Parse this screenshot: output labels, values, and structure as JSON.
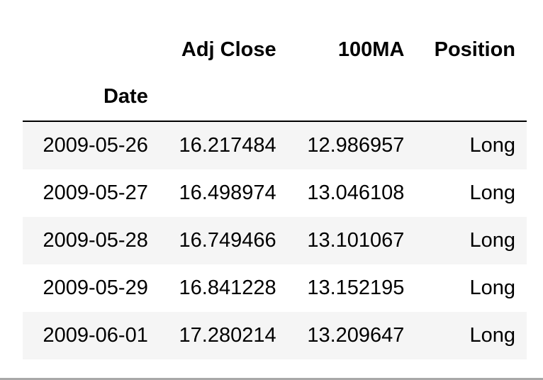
{
  "table": {
    "columns": [
      "Adj Close",
      "100MA",
      "Position"
    ],
    "index_name": "Date",
    "rows": [
      {
        "date": "2009-05-26",
        "adj_close": "16.217484",
        "ma100": "12.986957",
        "position": "Long"
      },
      {
        "date": "2009-05-27",
        "adj_close": "16.498974",
        "ma100": "13.046108",
        "position": "Long"
      },
      {
        "date": "2009-05-28",
        "adj_close": "16.749466",
        "ma100": "13.101067",
        "position": "Long"
      },
      {
        "date": "2009-05-29",
        "adj_close": "16.841228",
        "ma100": "13.152195",
        "position": "Long"
      },
      {
        "date": "2009-06-01",
        "adj_close": "17.280214",
        "ma100": "13.209647",
        "position": "Long"
      }
    ]
  }
}
